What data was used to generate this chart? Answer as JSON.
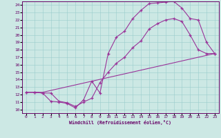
{
  "xlabel": "Windchill (Refroidissement éolien,°C)",
  "bg_color": "#cce8e4",
  "grid_color": "#99cccc",
  "line_color": "#993399",
  "spine_color": "#660066",
  "xlim": [
    -0.5,
    23.5
  ],
  "ylim": [
    9.5,
    24.5
  ],
  "xticks": [
    0,
    1,
    2,
    3,
    4,
    5,
    6,
    7,
    8,
    9,
    10,
    11,
    12,
    13,
    14,
    15,
    16,
    17,
    18,
    19,
    20,
    21,
    22,
    23
  ],
  "yticks": [
    10,
    11,
    12,
    13,
    14,
    15,
    16,
    17,
    18,
    19,
    20,
    21,
    22,
    23,
    24
  ],
  "line1_x": [
    0,
    1,
    2,
    3,
    4,
    5,
    6,
    7,
    8,
    9,
    10,
    11,
    12,
    13,
    14,
    15,
    16,
    17,
    18,
    19,
    20,
    21,
    22,
    23
  ],
  "line1_y": [
    12.3,
    12.3,
    12.2,
    11.1,
    11.0,
    10.8,
    10.2,
    11.3,
    13.8,
    12.2,
    17.5,
    19.7,
    20.5,
    22.2,
    23.3,
    24.2,
    24.3,
    24.4,
    24.5,
    23.6,
    22.2,
    22.0,
    19.0,
    17.5
  ],
  "line2_x": [
    0,
    1,
    2,
    3,
    4,
    5,
    6,
    7,
    8,
    9,
    10,
    11,
    12,
    13,
    14,
    15,
    16,
    17,
    18,
    19,
    20,
    21,
    22,
    23
  ],
  "line2_y": [
    12.3,
    12.3,
    12.2,
    12.2,
    11.1,
    10.9,
    10.4,
    11.0,
    11.5,
    13.6,
    15.0,
    16.2,
    17.0,
    18.3,
    19.2,
    20.8,
    21.5,
    22.0,
    22.2,
    21.8,
    20.0,
    18.0,
    17.5,
    17.5
  ],
  "line3_x": [
    0,
    1,
    2,
    23
  ],
  "line3_y": [
    12.3,
    12.3,
    12.3,
    17.5
  ]
}
